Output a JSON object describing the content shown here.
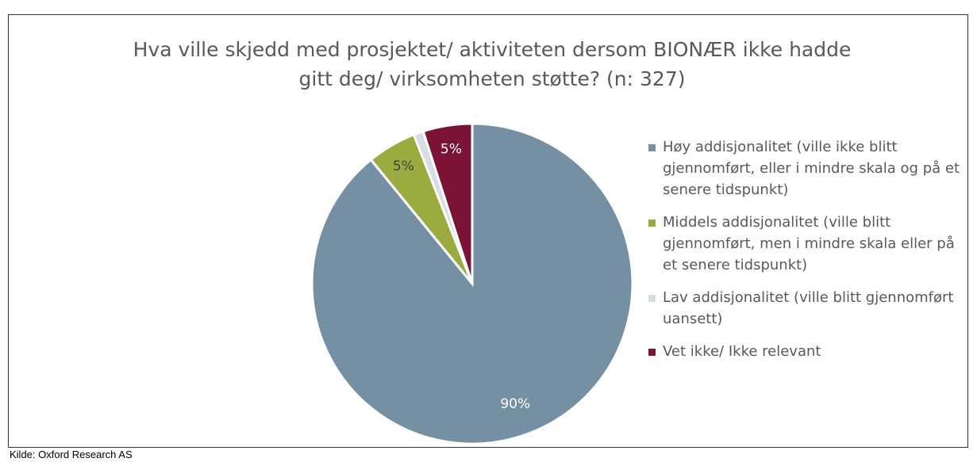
{
  "chart_data": {
    "type": "pie",
    "title": [
      "Hva ville skjedd med prosjektet/ aktiviteten dersom BIONÆR ikke hadde",
      "gitt deg/ virksomheten støtte? (n: 327)"
    ],
    "categories": [
      "Høy addisjonalitet (ville ikke blitt gjennomført, eller i mindre skala og på et senere tidspunkt)",
      "Middels addisjonalitet (ville blitt gjennomført, men i mindre skala eller på et senere tidspunkt)",
      "Lav addisjonalitet (ville blitt gjennomført uansett)",
      "Vet ikke/ Ikke relevant"
    ],
    "values": [
      90,
      5,
      1,
      5
    ],
    "value_labels": [
      "90%",
      "5%",
      null,
      "5%"
    ],
    "colors": [
      "#7590a3",
      "#9bab3f",
      "#d5dde6",
      "#7b1434"
    ],
    "legend": "right",
    "source": "Kilde: Oxford Research AS"
  }
}
